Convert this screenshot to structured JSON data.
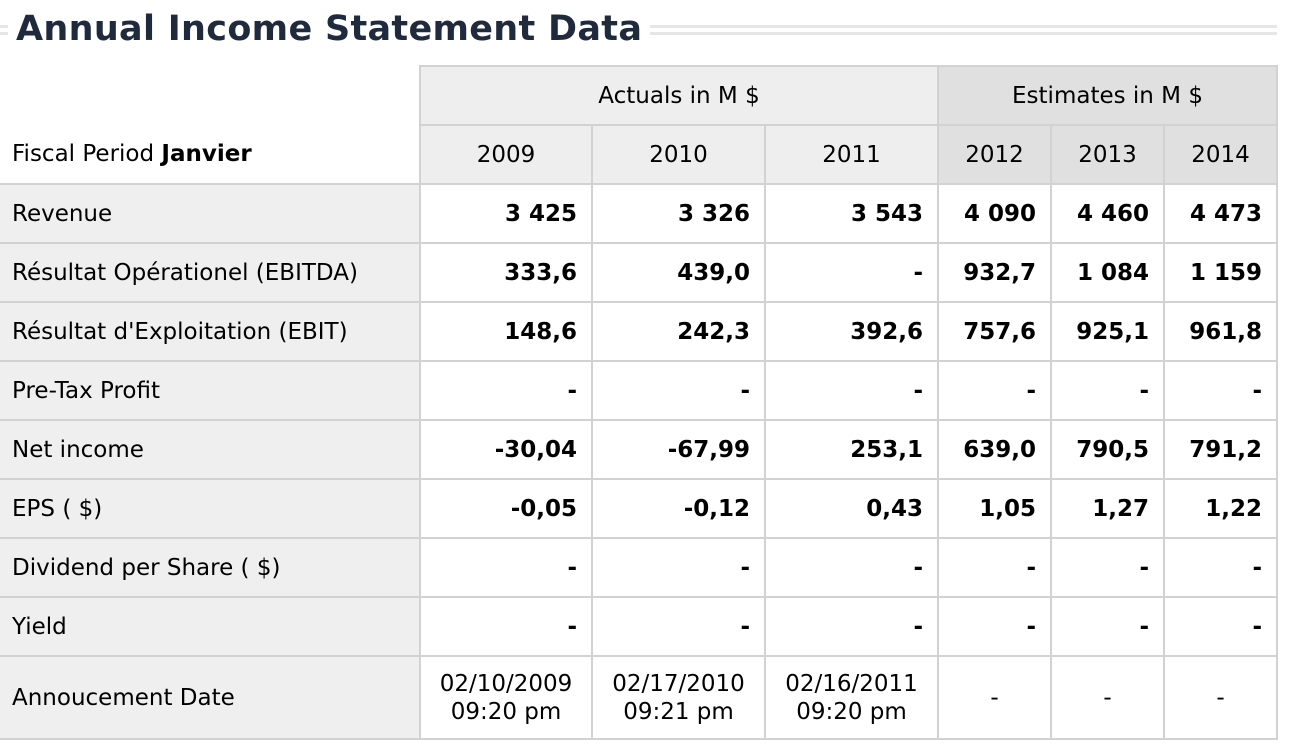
{
  "title": "Annual Income Statement Data",
  "header": {
    "fiscal_label": "Fiscal Period",
    "fiscal_month": "Janvier",
    "actuals_label": "Actuals in M $",
    "estimates_label": "Estimates in M $",
    "years": [
      "2009",
      "2010",
      "2011",
      "2012",
      "2013",
      "2014"
    ]
  },
  "rows": [
    {
      "label": "Revenue",
      "values": [
        "3 425",
        "3 326",
        "3 543",
        "4 090",
        "4 460",
        "4 473"
      ]
    },
    {
      "label": "Résultat Opérationel (EBITDA)",
      "values": [
        "333,6",
        "439,0",
        "-",
        "932,7",
        "1 084",
        "1 159"
      ]
    },
    {
      "label": "Résultat d'Exploitation (EBIT)",
      "values": [
        "148,6",
        "242,3",
        "392,6",
        "757,6",
        "925,1",
        "961,8"
      ]
    },
    {
      "label": "Pre-Tax Profit",
      "values": [
        "-",
        "-",
        "-",
        "-",
        "-",
        "-"
      ]
    },
    {
      "label": "Net income",
      "values": [
        "-30,04",
        "-67,99",
        "253,1",
        "639,0",
        "790,5",
        "791,2"
      ]
    },
    {
      "label": "EPS ( $)",
      "values": [
        "-0,05",
        "-0,12",
        "0,43",
        "1,05",
        "1,27",
        "1,22"
      ]
    },
    {
      "label": "Dividend per Share ( $)",
      "values": [
        "-",
        "-",
        "-",
        "-",
        "-",
        "-"
      ]
    },
    {
      "label": "Yield",
      "values": [
        "-",
        "-",
        "-",
        "-",
        "-",
        "-"
      ]
    }
  ],
  "announcement": {
    "label": "Annoucement Date",
    "dates": [
      {
        "date": "02/10/2009",
        "time": "09:20 pm"
      },
      {
        "date": "02/17/2010",
        "time": "09:21 pm"
      },
      {
        "date": "02/16/2011",
        "time": "09:20 pm"
      },
      {
        "date": "-",
        "time": ""
      },
      {
        "date": "-",
        "time": ""
      },
      {
        "date": "-",
        "time": ""
      }
    ]
  }
}
